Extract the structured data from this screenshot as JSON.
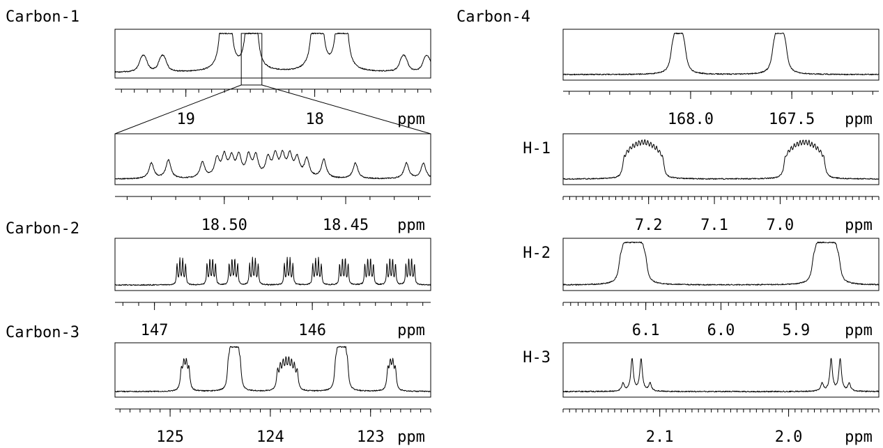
{
  "chart_data": [
    {
      "type": "line",
      "id": "carbon1",
      "title": "Carbon-1",
      "unit": "ppm",
      "xlim": [
        19.55,
        17.1
      ],
      "major_ticks": [
        19,
        18
      ],
      "tick_labels": [
        "19",
        "18"
      ],
      "minor_tick_step": 0.1,
      "peak_width": 0.02,
      "peaks": [
        {
          "center": 19.33,
          "height": 0.14,
          "lines": 5,
          "spacing": 0.012
        },
        {
          "center": 19.18,
          "height": 0.14,
          "lines": 5,
          "spacing": 0.012
        },
        {
          "center": 18.69,
          "height": 0.62,
          "lines": 9,
          "spacing": 0.008
        },
        {
          "center": 18.49,
          "height": 0.62,
          "lines": 9,
          "spacing": 0.008
        },
        {
          "center": 17.98,
          "height": 0.62,
          "lines": 9,
          "spacing": 0.008
        },
        {
          "center": 17.79,
          "height": 0.62,
          "lines": 9,
          "spacing": 0.008
        },
        {
          "center": 17.31,
          "height": 0.14,
          "lines": 5,
          "spacing": 0.012
        },
        {
          "center": 17.13,
          "height": 0.14,
          "lines": 5,
          "spacing": 0.012
        }
      ],
      "zoom_region": [
        18.57,
        18.41
      ]
    },
    {
      "type": "line",
      "id": "carbon1_zoom",
      "title": "",
      "unit": "ppm",
      "xlim": [
        18.545,
        18.415
      ],
      "major_ticks": [
        18.5,
        18.45
      ],
      "tick_labels": [
        "18.50",
        "18.45"
      ],
      "minor_tick_step": 0.01,
      "peak_width": 0.0012,
      "peaks": [
        {
          "center": 18.53,
          "height": 0.38,
          "lines": 1,
          "spacing": 0
        },
        {
          "center": 18.523,
          "height": 0.45,
          "lines": 1,
          "spacing": 0
        },
        {
          "center": 18.509,
          "height": 0.38,
          "lines": 1,
          "spacing": 0
        },
        {
          "center": 18.503,
          "height": 0.45,
          "lines": 1,
          "spacing": 0
        },
        {
          "center": 18.5,
          "height": 0.5,
          "lines": 1,
          "spacing": 0
        },
        {
          "center": 18.497,
          "height": 0.45,
          "lines": 1,
          "spacing": 0
        },
        {
          "center": 18.494,
          "height": 0.5,
          "lines": 1,
          "spacing": 0
        },
        {
          "center": 18.49,
          "height": 0.5,
          "lines": 1,
          "spacing": 0
        },
        {
          "center": 18.487,
          "height": 0.5,
          "lines": 1,
          "spacing": 0
        },
        {
          "center": 18.482,
          "height": 0.45,
          "lines": 1,
          "spacing": 0
        },
        {
          "center": 18.479,
          "height": 0.5,
          "lines": 1,
          "spacing": 0
        },
        {
          "center": 18.476,
          "height": 0.5,
          "lines": 1,
          "spacing": 0
        },
        {
          "center": 18.473,
          "height": 0.5,
          "lines": 1,
          "spacing": 0
        },
        {
          "center": 18.47,
          "height": 0.45,
          "lines": 1,
          "spacing": 0
        },
        {
          "center": 18.466,
          "height": 0.45,
          "lines": 1,
          "spacing": 0
        },
        {
          "center": 18.459,
          "height": 0.45,
          "lines": 1,
          "spacing": 0
        },
        {
          "center": 18.446,
          "height": 0.38,
          "lines": 1,
          "spacing": 0
        },
        {
          "center": 18.425,
          "height": 0.38,
          "lines": 1,
          "spacing": 0
        },
        {
          "center": 18.418,
          "height": 0.38,
          "lines": 1,
          "spacing": 0
        }
      ]
    },
    {
      "type": "line",
      "id": "carbon2",
      "title": "Carbon-2",
      "unit": "ppm",
      "xlim": [
        147.25,
        145.25
      ],
      "major_ticks": [
        147,
        146
      ],
      "tick_labels": [
        "147",
        "146"
      ],
      "minor_tick_step": 0.1,
      "peak_width": 0.004,
      "peaks": [
        {
          "center": 146.83,
          "height": 0.6,
          "lines": 4,
          "spacing": 0.018
        },
        {
          "center": 146.64,
          "height": 0.6,
          "lines": 4,
          "spacing": 0.018
        },
        {
          "center": 146.5,
          "height": 0.6,
          "lines": 4,
          "spacing": 0.018
        },
        {
          "center": 146.37,
          "height": 0.6,
          "lines": 4,
          "spacing": 0.018
        },
        {
          "center": 146.15,
          "height": 0.6,
          "lines": 4,
          "spacing": 0.018
        },
        {
          "center": 145.97,
          "height": 0.6,
          "lines": 4,
          "spacing": 0.018
        },
        {
          "center": 145.8,
          "height": 0.6,
          "lines": 4,
          "spacing": 0.018
        },
        {
          "center": 145.64,
          "height": 0.6,
          "lines": 4,
          "spacing": 0.018
        },
        {
          "center": 145.5,
          "height": 0.6,
          "lines": 4,
          "spacing": 0.018
        },
        {
          "center": 145.38,
          "height": 0.6,
          "lines": 4,
          "spacing": 0.018
        }
      ]
    },
    {
      "type": "line",
      "id": "carbon3",
      "title": "Carbon-3",
      "unit": "ppm",
      "xlim": [
        125.55,
        122.4
      ],
      "major_ticks": [
        125,
        124,
        123
      ],
      "tick_labels": [
        "125",
        "124",
        "123"
      ],
      "minor_tick_step": 0.1,
      "peak_width": 0.012,
      "peaks": [
        {
          "center": 124.85,
          "height": 0.55,
          "lines": 4,
          "spacing": 0.025
        },
        {
          "center": 124.36,
          "height": 0.62,
          "lines": 8,
          "spacing": 0.017
        },
        {
          "center": 123.83,
          "height": 0.55,
          "lines": 8,
          "spacing": 0.028
        },
        {
          "center": 123.29,
          "height": 0.62,
          "lines": 8,
          "spacing": 0.017
        },
        {
          "center": 122.79,
          "height": 0.55,
          "lines": 4,
          "spacing": 0.025
        }
      ]
    },
    {
      "type": "line",
      "id": "carbon4",
      "title": "Carbon-4",
      "unit": "ppm",
      "xlim": [
        168.63,
        167.07
      ],
      "major_ticks": [
        168.0,
        167.5
      ],
      "tick_labels": [
        "168.0",
        "167.5"
      ],
      "minor_tick_step": 0.1,
      "peak_width": 0.012,
      "peaks": [
        {
          "center": 168.06,
          "height": 0.5,
          "lines": 6,
          "spacing": 0.012
        },
        {
          "center": 167.56,
          "height": 0.5,
          "lines": 6,
          "spacing": 0.012
        }
      ]
    },
    {
      "type": "line",
      "id": "h1",
      "title": "H-1",
      "unit": "ppm",
      "xlim": [
        7.33,
        6.85
      ],
      "major_ticks": [
        7.2,
        7.1,
        7.0
      ],
      "tick_labels": [
        "7.2",
        "7.1",
        "7.0"
      ],
      "minor_tick_step": 0.01,
      "peak_width": 0.0025,
      "peaks": [
        {
          "center": 7.208,
          "height": 0.55,
          "lines": 14,
          "spacing": 0.0045
        },
        {
          "center": 6.963,
          "height": 0.55,
          "lines": 14,
          "spacing": 0.0045
        }
      ]
    },
    {
      "type": "line",
      "id": "h2",
      "title": "H-2",
      "unit": "ppm",
      "xlim": [
        6.21,
        5.79
      ],
      "major_ticks": [
        6.1,
        6.0,
        5.9
      ],
      "tick_labels": [
        "6.1",
        "6.0",
        "5.9"
      ],
      "minor_tick_step": 0.01,
      "peak_width": 0.0028,
      "peaks": [
        {
          "center": 6.125,
          "height": 0.5,
          "lines": 6,
          "spacing": 0.0035
        },
        {
          "center": 6.109,
          "height": 0.5,
          "lines": 6,
          "spacing": 0.0035
        },
        {
          "center": 5.868,
          "height": 0.5,
          "lines": 6,
          "spacing": 0.0035
        },
        {
          "center": 5.852,
          "height": 0.5,
          "lines": 6,
          "spacing": 0.0035
        }
      ]
    },
    {
      "type": "line",
      "id": "h3",
      "title": "H-3",
      "unit": "ppm",
      "xlim": [
        2.175,
        1.93
      ],
      "major_ticks": [
        2.1,
        2.0
      ],
      "tick_labels": [
        "2.1",
        "2.0"
      ],
      "minor_tick_step": 0.005,
      "peak_width": 0.0012,
      "peaks": [
        {
          "center": 2.1285,
          "height": 0.18,
          "lines": 1,
          "spacing": 0
        },
        {
          "center": 2.1215,
          "height": 0.72,
          "lines": 1,
          "spacing": 0
        },
        {
          "center": 2.1145,
          "height": 0.72,
          "lines": 1,
          "spacing": 0
        },
        {
          "center": 2.1075,
          "height": 0.18,
          "lines": 1,
          "spacing": 0
        },
        {
          "center": 1.974,
          "height": 0.18,
          "lines": 1,
          "spacing": 0
        },
        {
          "center": 1.967,
          "height": 0.72,
          "lines": 1,
          "spacing": 0
        },
        {
          "center": 1.96,
          "height": 0.72,
          "lines": 1,
          "spacing": 0
        },
        {
          "center": 1.953,
          "height": 0.18,
          "lines": 1,
          "spacing": 0
        }
      ]
    }
  ]
}
